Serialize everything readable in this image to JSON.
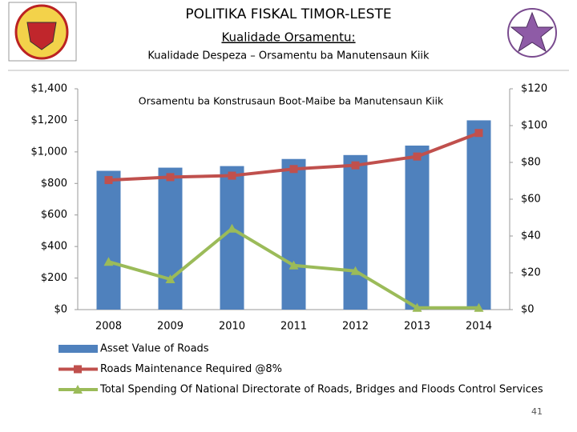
{
  "header": {
    "title": "POLITIKA FISKAL TIMOR-LESTE",
    "subtitle": "Kualidade Orsamentu:",
    "heading": "Kualidade Despeza – Orsamentu ba Manutensaun Kiik"
  },
  "chart_data": {
    "type": "bar",
    "title": "Orsamentu ba Konstrusaun Boot-Maibe ba Manutensaun Kiik",
    "categories": [
      "2008",
      "2009",
      "2010",
      "2011",
      "2012",
      "2013",
      "2014"
    ],
    "series": [
      {
        "name": "Asset Value of Roads",
        "type": "bar",
        "color": "#4f81bd",
        "values": [
          880,
          900,
          910,
          955,
          980,
          1040,
          1200
        ]
      },
      {
        "name": "Roads Maintenance Required @8%",
        "type": "line",
        "axis": "y2",
        "marker": "square",
        "color": "#c0504d",
        "values": [
          70.4,
          72,
          72.8,
          76.4,
          78.4,
          83.2,
          96
        ]
      },
      {
        "name": "Total Spending Of National Directorate of Roads, Bridges and Floods Control Services",
        "type": "line",
        "axis": "y2",
        "marker": "triangle",
        "color": "#9bbb59",
        "values": [
          26,
          16.5,
          44,
          24,
          21,
          1,
          1
        ]
      }
    ],
    "ylim": [
      0,
      1400
    ],
    "yticks": [
      {
        "value": 0,
        "label": "$0"
      },
      {
        "value": 200,
        "label": "$200"
      },
      {
        "value": 400,
        "label": "$400"
      },
      {
        "value": 600,
        "label": "$600"
      },
      {
        "value": 800,
        "label": "$800"
      },
      {
        "value": 1000,
        "label": "$1,000"
      },
      {
        "value": 1200,
        "label": "$1,200"
      },
      {
        "value": 1400,
        "label": "$1,400"
      }
    ],
    "y2lim": [
      0,
      120
    ],
    "y2ticks": [
      {
        "value": 0,
        "label": "$0"
      },
      {
        "value": 20,
        "label": "$20"
      },
      {
        "value": 40,
        "label": "$40"
      },
      {
        "value": 60,
        "label": "$60"
      },
      {
        "value": 80,
        "label": "$80"
      },
      {
        "value": 100,
        "label": "$100"
      },
      {
        "value": 120,
        "label": "$120"
      }
    ],
    "legend": "bottom"
  },
  "footer": {
    "page": "41"
  }
}
